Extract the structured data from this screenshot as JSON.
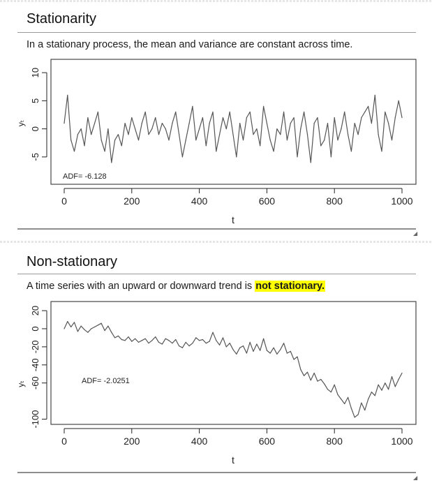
{
  "sections": [
    {
      "title": "Stationarity",
      "description": "In a stationary process, the mean and variance are constant across time."
    },
    {
      "title": "Non-stationary",
      "description_prefix": "A time series with an upward or downward trend is ",
      "description_highlight": "not stationary.",
      "highlight_color": "#ffff00"
    }
  ],
  "chart_data": [
    {
      "type": "line",
      "xlabel": "t",
      "ylabel": "yₜ",
      "xlim": [
        0,
        1000
      ],
      "ylim": [
        -8,
        12
      ],
      "xticks": [
        0,
        200,
        400,
        600,
        800,
        1000
      ],
      "yticks": [
        -5,
        0,
        5,
        10
      ],
      "grid": false,
      "annotation": "ADF= -6.128",
      "line_color": "#555555",
      "series": [
        {
          "x": [
            0,
            10,
            20,
            30,
            40,
            50,
            60,
            70,
            80,
            90,
            100,
            110,
            120,
            130,
            140,
            150,
            160,
            170,
            180,
            190,
            200,
            210,
            220,
            230,
            240,
            250,
            260,
            270,
            280,
            290,
            300,
            310,
            320,
            330,
            340,
            350,
            360,
            370,
            380,
            390,
            400,
            410,
            420,
            430,
            440,
            450,
            460,
            470,
            480,
            490,
            500,
            510,
            520,
            530,
            540,
            550,
            560,
            570,
            580,
            590,
            600,
            610,
            620,
            630,
            640,
            650,
            660,
            670,
            680,
            690,
            700,
            710,
            720,
            730,
            740,
            750,
            760,
            770,
            780,
            790,
            800,
            810,
            820,
            830,
            840,
            850,
            860,
            870,
            880,
            890,
            900,
            910,
            920,
            930,
            940,
            950,
            960,
            970,
            980,
            990,
            1000
          ],
          "values": [
            1,
            6,
            -2,
            -4,
            -1,
            0,
            -3,
            2,
            -1,
            1,
            3,
            -2,
            -4,
            0,
            -6,
            -2,
            -1,
            -3,
            1,
            -1,
            2,
            0,
            -2,
            1,
            3,
            -1,
            0,
            2,
            -1,
            1,
            0,
            -2,
            1,
            3,
            -1,
            -5,
            -2,
            1,
            4,
            -2,
            0,
            2,
            -3,
            1,
            3,
            -4,
            -1,
            2,
            0,
            3,
            -1,
            -5,
            1,
            -2,
            2,
            3,
            -1,
            0,
            -3,
            4,
            1,
            -2,
            -4,
            0,
            -1,
            3,
            -2,
            1,
            2,
            -5,
            0,
            3,
            -1,
            -6,
            1,
            2,
            -3,
            -2,
            1,
            -5,
            2,
            -2,
            0,
            3,
            -1,
            -4,
            1,
            -1,
            2,
            3,
            4,
            1,
            6,
            -1,
            -4,
            3,
            1,
            -2,
            2,
            5,
            2
          ]
        }
      ]
    },
    {
      "type": "line",
      "xlabel": "t",
      "ylabel": "yₜ",
      "xlim": [
        0,
        1000
      ],
      "ylim": [
        -105,
        27
      ],
      "xticks": [
        0,
        200,
        400,
        600,
        800,
        1000
      ],
      "yticks": [
        -100,
        -60,
        -40,
        -20,
        0,
        20
      ],
      "grid": false,
      "annotation": "ADF= -2.0251",
      "line_color": "#555555",
      "series": [
        {
          "x": [
            0,
            10,
            20,
            30,
            40,
            50,
            60,
            70,
            80,
            90,
            100,
            110,
            120,
            130,
            140,
            150,
            160,
            170,
            180,
            190,
            200,
            210,
            220,
            230,
            240,
            250,
            260,
            270,
            280,
            290,
            300,
            310,
            320,
            330,
            340,
            350,
            360,
            370,
            380,
            390,
            400,
            410,
            420,
            430,
            440,
            450,
            460,
            470,
            480,
            490,
            500,
            510,
            520,
            530,
            540,
            550,
            560,
            570,
            580,
            590,
            600,
            610,
            620,
            630,
            640,
            650,
            660,
            670,
            680,
            690,
            700,
            710,
            720,
            730,
            740,
            750,
            760,
            770,
            780,
            790,
            800,
            810,
            820,
            830,
            840,
            850,
            860,
            870,
            880,
            890,
            900,
            910,
            920,
            930,
            940,
            950,
            960,
            970,
            980,
            990,
            1000
          ],
          "values": [
            0,
            8,
            2,
            7,
            -3,
            3,
            -1,
            -4,
            0,
            2,
            4,
            6,
            -2,
            3,
            -4,
            -10,
            -8,
            -12,
            -13,
            -9,
            -14,
            -11,
            -15,
            -13,
            -11,
            -16,
            -13,
            -9,
            -15,
            -17,
            -11,
            -13,
            -16,
            -12,
            -19,
            -21,
            -15,
            -19,
            -16,
            -10,
            -13,
            -12,
            -16,
            -14,
            -4,
            -13,
            -18,
            -10,
            -20,
            -16,
            -23,
            -28,
            -21,
            -19,
            -27,
            -15,
            -25,
            -17,
            -24,
            -11,
            -24,
            -27,
            -21,
            -28,
            -23,
            -16,
            -27,
            -25,
            -34,
            -31,
            -45,
            -52,
            -48,
            -57,
            -49,
            -58,
            -56,
            -61,
            -67,
            -70,
            -62,
            -73,
            -78,
            -83,
            -76,
            -88,
            -98,
            -95,
            -82,
            -90,
            -78,
            -70,
            -74,
            -62,
            -68,
            -60,
            -67,
            -53,
            -64,
            -56,
            -49
          ]
        }
      ]
    }
  ]
}
